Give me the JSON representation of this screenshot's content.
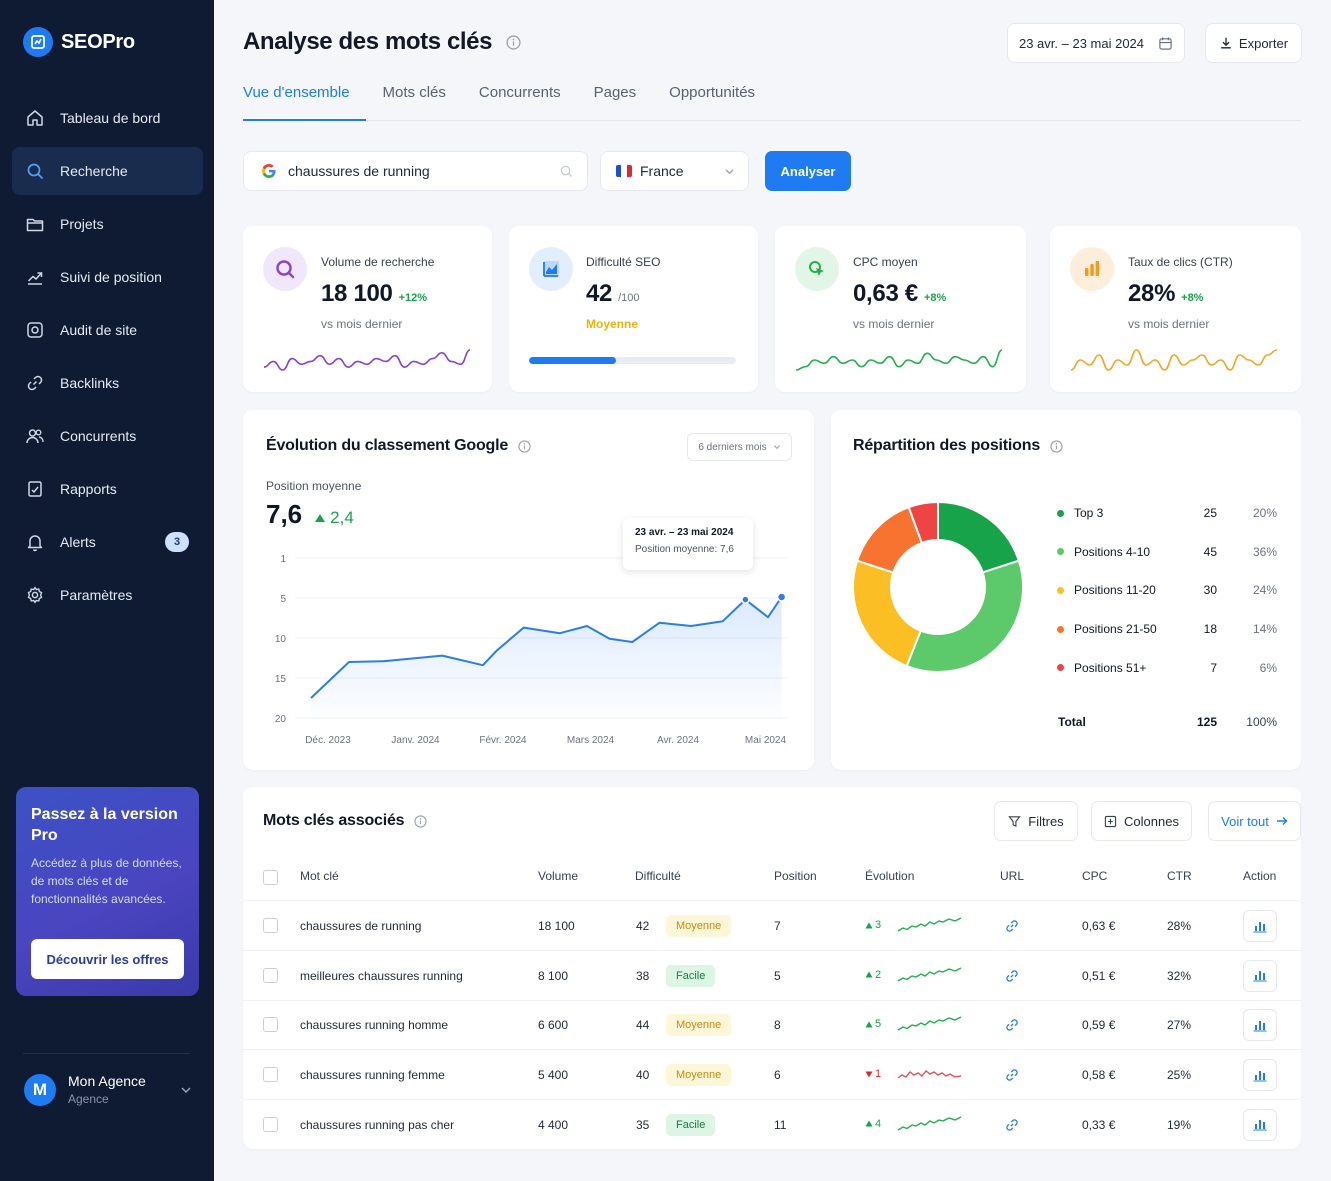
{
  "app": {
    "brand": "SEOPro"
  },
  "sidebar": {
    "items": [
      {
        "label": "Tableau de bord",
        "icon": "home-icon"
      },
      {
        "label": "Recherche",
        "icon": "search-icon",
        "active": true
      },
      {
        "label": "Projets",
        "icon": "folder-icon"
      },
      {
        "label": "Suivi de position",
        "icon": "trend-icon"
      },
      {
        "label": "Audit de site",
        "icon": "audit-icon"
      },
      {
        "label": "Backlinks",
        "icon": "link-icon"
      },
      {
        "label": "Concurrents",
        "icon": "users-icon"
      },
      {
        "label": "Rapports",
        "icon": "report-icon"
      },
      {
        "label": "Alerts",
        "icon": "bell-icon",
        "badge": "3"
      },
      {
        "label": "Paramètres",
        "icon": "gear-icon"
      }
    ],
    "promo": {
      "title": "Passez à la version Pro",
      "text": "Accédez à plus de données, de mots clés et de fonctionnalités avancées.",
      "button": "Découvrir les offres"
    },
    "user": {
      "initial": "M",
      "name": "Mon Agence",
      "role": "Agence"
    }
  },
  "header": {
    "title": "Analyse des mots clés",
    "date_range": "23 avr. – 23 mai 2024",
    "export_label": "Exporter"
  },
  "tabs": [
    {
      "label": "Vue d'ensemble",
      "active": true
    },
    {
      "label": "Mots clés"
    },
    {
      "label": "Concurrents"
    },
    {
      "label": "Pages"
    },
    {
      "label": "Opportunités"
    }
  ],
  "search": {
    "value": "chaussures de running",
    "country": "France",
    "button": "Analyser"
  },
  "kpis": {
    "volume": {
      "label": "Volume de recherche",
      "value": "18 100",
      "delta": "+12%",
      "note": "vs mois dernier",
      "color": "#8b3fd8",
      "spark": [
        12,
        10,
        13,
        9,
        11,
        10,
        8,
        11,
        9,
        12,
        10,
        11,
        9,
        10,
        8,
        12,
        10,
        11,
        9,
        7,
        10,
        11,
        6
      ]
    },
    "difficulty": {
      "label": "Difficulté SEO",
      "value": "42",
      "max": "/100",
      "level": "Moyenne",
      "progress": 0.42,
      "color": "#1e7bf2"
    },
    "cpc": {
      "label": "CPC moyen",
      "value": "0,63 €",
      "delta": "+8%",
      "note": "vs mois dernier",
      "color": "#22b04b",
      "spark": [
        13,
        12,
        10,
        11,
        9,
        11,
        10,
        12,
        10,
        11,
        9,
        12,
        10,
        11,
        8,
        10,
        11,
        9,
        10,
        11,
        9,
        12,
        7
      ]
    },
    "ctr": {
      "label": "Taux de clics (CTR)",
      "value": "28%",
      "delta": "+8%",
      "note": "vs mois dernier",
      "color": "#f5a524",
      "spark": [
        12,
        10,
        11,
        9,
        12,
        10,
        11,
        8,
        11,
        10,
        12,
        9,
        11,
        10,
        9,
        11,
        10,
        12,
        9,
        10,
        11,
        9,
        8
      ]
    }
  },
  "ranking": {
    "title": "Évolution du classement Google",
    "period": "6 derniers mois",
    "avg_label": "Position moyenne",
    "avg_value": "7,6",
    "avg_delta": "2,4",
    "tooltip_title": "23 avr. – 23 mai 2024",
    "tooltip_text": "Position moyenne: 7,6"
  },
  "distribution": {
    "title": "Répartition des positions",
    "items": [
      {
        "name": "Top 3",
        "count": "25",
        "pct": "20%",
        "color": "#16a34a"
      },
      {
        "name": "Positions 4-10",
        "count": "45",
        "pct": "36%",
        "color": "#5cc96a"
      },
      {
        "name": "Positions 11-20",
        "count": "30",
        "pct": "24%",
        "color": "#fbbf24"
      },
      {
        "name": "Positions 21-50",
        "count": "18",
        "pct": "14%",
        "color": "#f97330"
      },
      {
        "name": "Positions 51+",
        "count": "7",
        "pct": "6%",
        "color": "#ef4444"
      }
    ],
    "total_label": "Total",
    "total_count": "125",
    "total_pct": "100%"
  },
  "chart_data": {
    "type": "line",
    "title": "Évolution du classement Google",
    "ylabel": "Position moyenne",
    "x_ticks": [
      "Déc. 2023",
      "Janv. 2024",
      "Févr. 2024",
      "Mars 2024",
      "Avr. 2024",
      "Mai 2024"
    ],
    "y_ticks": [
      1,
      5,
      10,
      15,
      20
    ],
    "ylim": [
      20,
      1
    ],
    "y_reversed": true,
    "grid": true,
    "series": [
      {
        "x": [
          0,
          0.42,
          0.8,
          1.45,
          1.9,
          2.05,
          2.35,
          2.75,
          3.05,
          3.3,
          3.55,
          3.85,
          4.2,
          4.55,
          4.8,
          5.05,
          5.2
        ],
        "values": [
          17.5,
          13.0,
          12.9,
          12.2,
          13.4,
          11.6,
          8.7,
          9.4,
          8.5,
          10.1,
          10.5,
          8.1,
          8.5,
          7.9,
          5.2,
          7.4,
          4.9
        ]
      }
    ],
    "highlight": {
      "label": "23 avr. – 23 mai 2024",
      "value": 7.6
    }
  },
  "keywords": {
    "title": "Mots clés associés",
    "filters_label": "Filtres",
    "columns_label": "Colonnes",
    "see_all_label": "Voir tout",
    "headers": {
      "keyword": "Mot clé",
      "volume": "Volume",
      "difficulty": "Difficulté",
      "position": "Position",
      "evolution": "Évolution",
      "url": "URL",
      "cpc": "CPC",
      "ctr": "CTR",
      "action": "Action"
    },
    "rows": [
      {
        "keyword": "chaussures de running",
        "volume": "18 100",
        "difficulty": "42",
        "level": "Moyenne",
        "position": "7",
        "evo": "3",
        "trend": "up",
        "cpc": "0,63 €",
        "ctr": "28%"
      },
      {
        "keyword": "meilleures chaussures running",
        "volume": "8 100",
        "difficulty": "38",
        "level": "Facile",
        "position": "5",
        "evo": "2",
        "trend": "up",
        "cpc": "0,51 €",
        "ctr": "32%"
      },
      {
        "keyword": "chaussures running homme",
        "volume": "6 600",
        "difficulty": "44",
        "level": "Moyenne",
        "position": "8",
        "evo": "5",
        "trend": "up",
        "cpc": "0,59 €",
        "ctr": "27%"
      },
      {
        "keyword": "chaussures running femme",
        "volume": "5 400",
        "difficulty": "40",
        "level": "Moyenne",
        "position": "6",
        "evo": "1",
        "trend": "down",
        "cpc": "0,58 €",
        "ctr": "25%"
      },
      {
        "keyword": "chaussures running pas cher",
        "volume": "4 400",
        "difficulty": "35",
        "level": "Facile",
        "position": "11",
        "evo": "4",
        "trend": "up",
        "cpc": "0,33 €",
        "ctr": "19%"
      }
    ]
  }
}
